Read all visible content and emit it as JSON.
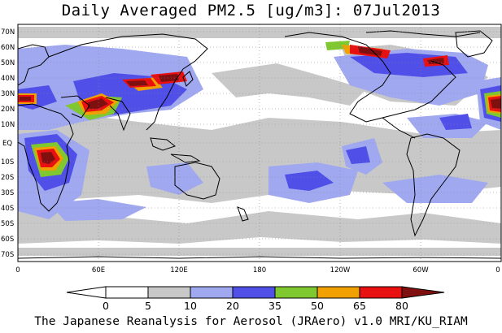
{
  "title": "Daily Averaged PM2.5 [ug/m3]: 07Jul2013",
  "footer": "The Japanese Reanalysis for Aerosol (JRAero) v1.0 MRI/KU_RIAM",
  "lat_ticks": [
    "70N",
    "60N",
    "50N",
    "40N",
    "30N",
    "20N",
    "10N",
    "EQ",
    "10S",
    "20S",
    "30S",
    "40S",
    "50S",
    "60S",
    "70S"
  ],
  "lon_ticks": [
    "0",
    "60E",
    "120E",
    "180",
    "120W",
    "60W",
    "0"
  ],
  "colorbar": {
    "bounds": [
      "0",
      "5",
      "10",
      "20",
      "35",
      "50",
      "65",
      "80"
    ],
    "colors": [
      "#ffffff",
      "#c8c8c8",
      "#a0a8f0",
      "#5050e8",
      "#80c830",
      "#f0a000",
      "#e81010",
      "#801010"
    ]
  },
  "map_colors": {
    "land_outline": "#000000",
    "grid": "#888888"
  }
}
